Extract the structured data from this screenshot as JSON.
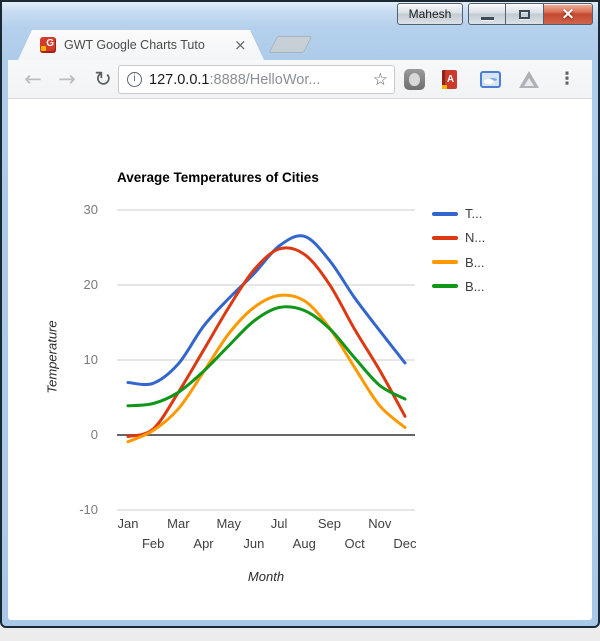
{
  "window": {
    "title_button": "Mahesh",
    "close_icon": "×"
  },
  "tab": {
    "title": "GWT Google Charts Tuto",
    "close_icon": "×",
    "favicon_letter": "G"
  },
  "toolbar": {
    "back_icon": "←",
    "forward_icon": "→",
    "reload_icon": "↻",
    "address": {
      "info_icon": "i",
      "host": "127.0.0.1",
      "path": ":8888/HelloWor...",
      "bookmark_icon": "☆"
    },
    "extensions": {
      "book_letter": "A"
    },
    "menu_icon": "⋮"
  },
  "chart_data": {
    "type": "line",
    "title": "Average Temperatures of Cities",
    "xlabel": "Month",
    "ylabel": "Temperature",
    "categories": [
      "Jan",
      "Feb",
      "Mar",
      "Apr",
      "May",
      "Jun",
      "Jul",
      "Aug",
      "Sep",
      "Oct",
      "Nov",
      "Dec"
    ],
    "y_ticks": [
      30,
      20,
      10,
      0,
      -10
    ],
    "ylim": [
      -10,
      30
    ],
    "grid": true,
    "curve": "smooth",
    "legend_position": "right",
    "gridline_color": "#CCCCCC",
    "baseline_color": "#666666",
    "series": [
      {
        "name": "T...",
        "color": "#3366CC",
        "values": [
          7.0,
          6.9,
          9.5,
          14.5,
          18.2,
          21.5,
          25.2,
          26.5,
          23.3,
          18.3,
          13.9,
          9.6
        ]
      },
      {
        "name": "N...",
        "color": "#DC3912",
        "values": [
          -0.2,
          0.8,
          5.7,
          11.3,
          17.0,
          22.0,
          24.8,
          24.1,
          20.1,
          14.1,
          8.6,
          2.5
        ]
      },
      {
        "name": "B...",
        "color": "#FF9900",
        "values": [
          -0.9,
          0.6,
          3.5,
          8.4,
          13.5,
          17.0,
          18.6,
          17.9,
          14.3,
          9.0,
          3.9,
          1.0
        ]
      },
      {
        "name": "B...",
        "color": "#109618",
        "values": [
          3.9,
          4.2,
          5.7,
          8.5,
          11.9,
          15.2,
          17.0,
          16.6,
          14.2,
          10.3,
          6.6,
          4.8
        ]
      }
    ]
  }
}
